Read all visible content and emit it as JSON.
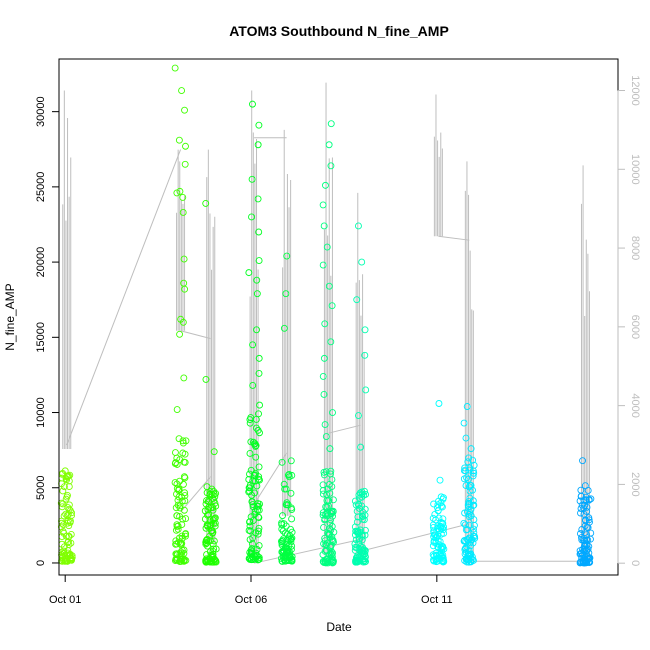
{
  "chart_data": {
    "type": "scatter",
    "title": "ATOM3 Southbound N_fine_AMP",
    "xlabel": "Date",
    "ylabel": "N_fine_AMP",
    "x_unit": "date",
    "xlim": [
      "2018-09-30T20:00",
      "2018-10-15T21:00"
    ],
    "ylim": [
      -800,
      33500
    ],
    "xticks": [
      {
        "label": "Oct 01",
        "date": "2018-10-01"
      },
      {
        "label": "Oct 06",
        "date": "2018-10-06"
      },
      {
        "label": "Oct 11",
        "date": "2018-10-11"
      }
    ],
    "yticks": [
      0,
      5000,
      10000,
      15000,
      20000,
      25000,
      30000
    ],
    "secondary_axis": {
      "side": "right",
      "color": "#bebebe",
      "ylim": [
        -300,
        12800
      ],
      "ticks": [
        0,
        2000,
        4000,
        6000,
        8000,
        10000,
        12000
      ]
    },
    "grid": false,
    "legend": "none",
    "point_series": [
      {
        "date": "2018-10-01T01:00",
        "color": "#80ff00",
        "low": 100,
        "high": 6400,
        "outliers": []
      },
      {
        "date": "2018-10-04T02:30",
        "color": "#40ff00",
        "low": 100,
        "high": 8800,
        "outliers": [
          10200,
          12300,
          15200,
          16000,
          16200,
          18200,
          18600,
          20200,
          23300,
          24300,
          24600,
          24700,
          26500,
          27700,
          28100,
          30100,
          31400,
          32900
        ]
      },
      {
        "date": "2018-10-04T22:00",
        "color": "#20ff00",
        "low": 50,
        "high": 5100,
        "outliers": [
          7400,
          12200,
          23900
        ]
      },
      {
        "date": "2018-10-06T02:00",
        "color": "#00ff20",
        "low": 200,
        "high": 10500,
        "outliers": [
          11800,
          12600,
          13600,
          14500,
          15500,
          17900,
          18800,
          19300,
          20100,
          22000,
          23000,
          24200,
          25500,
          27800,
          29100,
          30500
        ]
      },
      {
        "date": "2018-10-06T23:00",
        "color": "#00ff40",
        "low": 100,
        "high": 6800,
        "outliers": [
          15600,
          17900,
          20400
        ]
      },
      {
        "date": "2018-10-08T02:00",
        "color": "#00ff80",
        "low": 0,
        "high": 6300,
        "outliers": [
          7600,
          8400,
          9200,
          10000,
          11200,
          12400,
          13600,
          14700,
          15900,
          17100,
          18400,
          19800,
          21000,
          22400,
          23800,
          25100,
          26400,
          27800,
          29200
        ]
      },
      {
        "date": "2018-10-08T22:30",
        "color": "#00ffb0",
        "low": 50,
        "high": 4800,
        "outliers": [
          7700,
          9800,
          11500,
          13800,
          15500,
          17500,
          20000,
          22400
        ]
      },
      {
        "date": "2018-10-11T01:00",
        "color": "#00ffff",
        "low": 50,
        "high": 4400,
        "outliers": [
          5500,
          10600
        ]
      },
      {
        "date": "2018-10-11T21:00",
        "color": "#00eaff",
        "low": 50,
        "high": 7000,
        "outliers": [
          7600,
          8300,
          9300,
          10400
        ]
      },
      {
        "date": "2018-10-15T00:00",
        "color": "#00a8ff",
        "low": 0,
        "high": 5300,
        "outliers": [
          6800
        ]
      }
    ],
    "grey_line_series": {
      "axis": "right",
      "color": "#bebebe",
      "spikes": [
        {
          "date": "2018-10-01T01:00",
          "low": 2900,
          "high": 12000
        },
        {
          "date": "2018-10-04T02:30",
          "low": 5900,
          "high": 10500
        },
        {
          "date": "2018-10-04T22:00",
          "low": 500,
          "high": 10500
        },
        {
          "date": "2018-10-06T02:00",
          "low": 200,
          "high": 12000
        },
        {
          "date": "2018-10-06T23:00",
          "low": 1200,
          "high": 11000
        },
        {
          "date": "2018-10-08T02:00",
          "low": 200,
          "high": 12200
        },
        {
          "date": "2018-10-08T22:30",
          "low": 200,
          "high": 9400
        },
        {
          "date": "2018-10-11T01:00",
          "low": 8300,
          "high": 11900
        },
        {
          "date": "2018-10-11T21:00",
          "low": 250,
          "high": 10200
        },
        {
          "date": "2018-10-15T00:00",
          "low": 50,
          "high": 10100
        }
      ],
      "connectors": [
        [
          "2018-10-01T01:00",
          3000,
          "2018-10-04T02:30",
          10500
        ],
        [
          "2018-10-04T02:30",
          5900,
          "2018-10-04T22:00",
          5700
        ],
        [
          "2018-10-04T02:30",
          1300,
          "2018-10-04T22:00",
          2200
        ],
        [
          "2018-10-06T02:00",
          10800,
          "2018-10-06T23:00",
          10800
        ],
        [
          "2018-10-06T02:00",
          1500,
          "2018-10-06T23:00",
          2800
        ],
        [
          "2018-10-06T02:00",
          0,
          "2018-10-08T22:30",
          600
        ],
        [
          "2018-10-08T02:00",
          3300,
          "2018-10-08T22:30",
          3500
        ],
        [
          "2018-10-11T01:00",
          8300,
          "2018-10-11T21:00",
          8200
        ],
        [
          "2018-10-08T22:30",
          300,
          "2018-10-11T21:00",
          1000
        ],
        [
          "2018-10-11T21:00",
          50,
          "2018-10-15T00:00",
          50
        ]
      ]
    }
  }
}
